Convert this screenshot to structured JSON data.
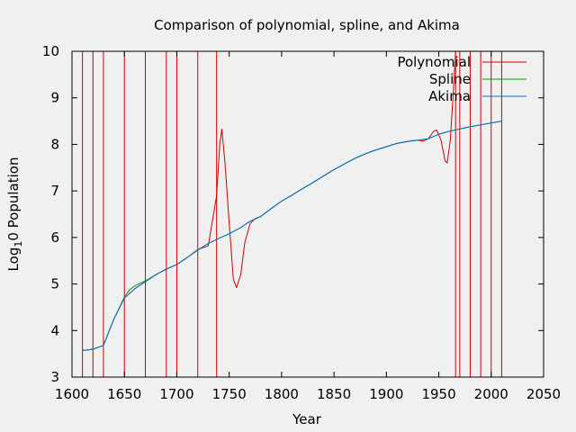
{
  "chart_data": {
    "type": "line",
    "title": "Comparison of polynomial, spline, and Akima",
    "xlabel": "Year",
    "ylabel_parts": {
      "pre": "Log",
      "sub": "1",
      "post": "0 Population"
    },
    "xlim": [
      1600,
      2050
    ],
    "ylim": [
      3,
      10
    ],
    "x_ticks": [
      1600,
      1650,
      1700,
      1750,
      1800,
      1850,
      1900,
      1950,
      2000,
      2050
    ],
    "y_ticks": [
      3,
      4,
      5,
      6,
      7,
      8,
      9,
      10
    ],
    "grid": false,
    "legend_position": "top-right",
    "series": [
      {
        "name": "Polynomial",
        "color": "#d00000",
        "points": [
          [
            1610,
            3.57
          ],
          [
            1620,
            3.6
          ],
          [
            1630,
            3.68
          ],
          [
            1640,
            4.25
          ],
          [
            1650,
            4.7
          ],
          [
            1660,
            4.9
          ],
          [
            1670,
            5.05
          ],
          [
            1680,
            5.2
          ],
          [
            1690,
            5.32
          ],
          [
            1700,
            5.42
          ],
          [
            1710,
            5.57
          ],
          [
            1720,
            5.74
          ],
          [
            1730,
            5.82
          ],
          [
            1738,
            6.9
          ],
          [
            1741,
            8.0
          ],
          [
            1743,
            8.33
          ],
          [
            1746,
            7.6
          ],
          [
            1750,
            6.3
          ],
          [
            1754,
            5.1
          ],
          [
            1757,
            4.92
          ],
          [
            1761,
            5.2
          ],
          [
            1765,
            5.9
          ],
          [
            1770,
            6.3
          ],
          [
            1775,
            6.41
          ],
          [
            1780,
            6.45
          ],
          [
            1790,
            6.62
          ],
          [
            1800,
            6.78
          ],
          [
            1810,
            6.91
          ],
          [
            1820,
            7.05
          ],
          [
            1830,
            7.18
          ],
          [
            1840,
            7.32
          ],
          [
            1850,
            7.46
          ],
          [
            1860,
            7.58
          ],
          [
            1870,
            7.7
          ],
          [
            1880,
            7.8
          ],
          [
            1890,
            7.88
          ],
          [
            1900,
            7.95
          ],
          [
            1910,
            8.02
          ],
          [
            1920,
            8.06
          ],
          [
            1925,
            8.08
          ],
          [
            1930,
            8.09
          ],
          [
            1935,
            8.07
          ],
          [
            1940,
            8.12
          ],
          [
            1945,
            8.28
          ],
          [
            1948,
            8.31
          ],
          [
            1952,
            8.1
          ],
          [
            1956,
            7.65
          ],
          [
            1958,
            7.6
          ],
          [
            1961,
            8.1
          ],
          [
            1964,
            9.2
          ],
          [
            1966,
            10.0
          ]
        ],
        "spikes": [
          1610,
          1620,
          1630,
          1650,
          1670,
          1690,
          1700,
          1720,
          1738,
          1966,
          1970,
          1980,
          1990,
          2000,
          2010
        ]
      },
      {
        "name": "Spline",
        "color": "#00a000",
        "points": [
          [
            1610,
            3.57
          ],
          [
            1620,
            3.6
          ],
          [
            1630,
            3.68
          ],
          [
            1640,
            4.25
          ],
          [
            1650,
            4.72
          ],
          [
            1655,
            4.88
          ],
          [
            1660,
            4.96
          ],
          [
            1670,
            5.07
          ],
          [
            1680,
            5.2
          ],
          [
            1690,
            5.32
          ],
          [
            1700,
            5.42
          ],
          [
            1710,
            5.57
          ],
          [
            1720,
            5.73
          ],
          [
            1730,
            5.87
          ],
          [
            1740,
            5.98
          ],
          [
            1750,
            6.08
          ],
          [
            1760,
            6.2
          ],
          [
            1770,
            6.35
          ],
          [
            1780,
            6.45
          ],
          [
            1790,
            6.62
          ],
          [
            1800,
            6.78
          ],
          [
            1810,
            6.91
          ],
          [
            1820,
            7.05
          ],
          [
            1830,
            7.18
          ],
          [
            1840,
            7.32
          ],
          [
            1850,
            7.46
          ],
          [
            1860,
            7.58
          ],
          [
            1870,
            7.7
          ],
          [
            1880,
            7.8
          ],
          [
            1890,
            7.88
          ],
          [
            1900,
            7.95
          ],
          [
            1910,
            8.02
          ],
          [
            1920,
            8.06
          ],
          [
            1930,
            8.09
          ],
          [
            1940,
            8.12
          ],
          [
            1950,
            8.22
          ],
          [
            1960,
            8.28
          ],
          [
            1970,
            8.33
          ],
          [
            1980,
            8.38
          ],
          [
            1990,
            8.42
          ],
          [
            2000,
            8.46
          ],
          [
            2010,
            8.5
          ]
        ]
      },
      {
        "name": "Akima",
        "color": "#0070d0",
        "points": [
          [
            1610,
            3.57
          ],
          [
            1620,
            3.6
          ],
          [
            1630,
            3.68
          ],
          [
            1640,
            4.25
          ],
          [
            1650,
            4.7
          ],
          [
            1660,
            4.9
          ],
          [
            1670,
            5.05
          ],
          [
            1680,
            5.2
          ],
          [
            1690,
            5.32
          ],
          [
            1700,
            5.42
          ],
          [
            1710,
            5.57
          ],
          [
            1720,
            5.73
          ],
          [
            1730,
            5.87
          ],
          [
            1740,
            5.98
          ],
          [
            1750,
            6.08
          ],
          [
            1760,
            6.2
          ],
          [
            1770,
            6.35
          ],
          [
            1780,
            6.45
          ],
          [
            1790,
            6.62
          ],
          [
            1800,
            6.78
          ],
          [
            1810,
            6.91
          ],
          [
            1820,
            7.05
          ],
          [
            1830,
            7.18
          ],
          [
            1840,
            7.32
          ],
          [
            1850,
            7.46
          ],
          [
            1860,
            7.58
          ],
          [
            1870,
            7.7
          ],
          [
            1880,
            7.8
          ],
          [
            1890,
            7.88
          ],
          [
            1900,
            7.95
          ],
          [
            1910,
            8.02
          ],
          [
            1920,
            8.06
          ],
          [
            1930,
            8.09
          ],
          [
            1940,
            8.12
          ],
          [
            1950,
            8.22
          ],
          [
            1960,
            8.28
          ],
          [
            1970,
            8.33
          ],
          [
            1980,
            8.38
          ],
          [
            1990,
            8.42
          ],
          [
            2000,
            8.46
          ],
          [
            2010,
            8.5
          ]
        ]
      }
    ]
  }
}
